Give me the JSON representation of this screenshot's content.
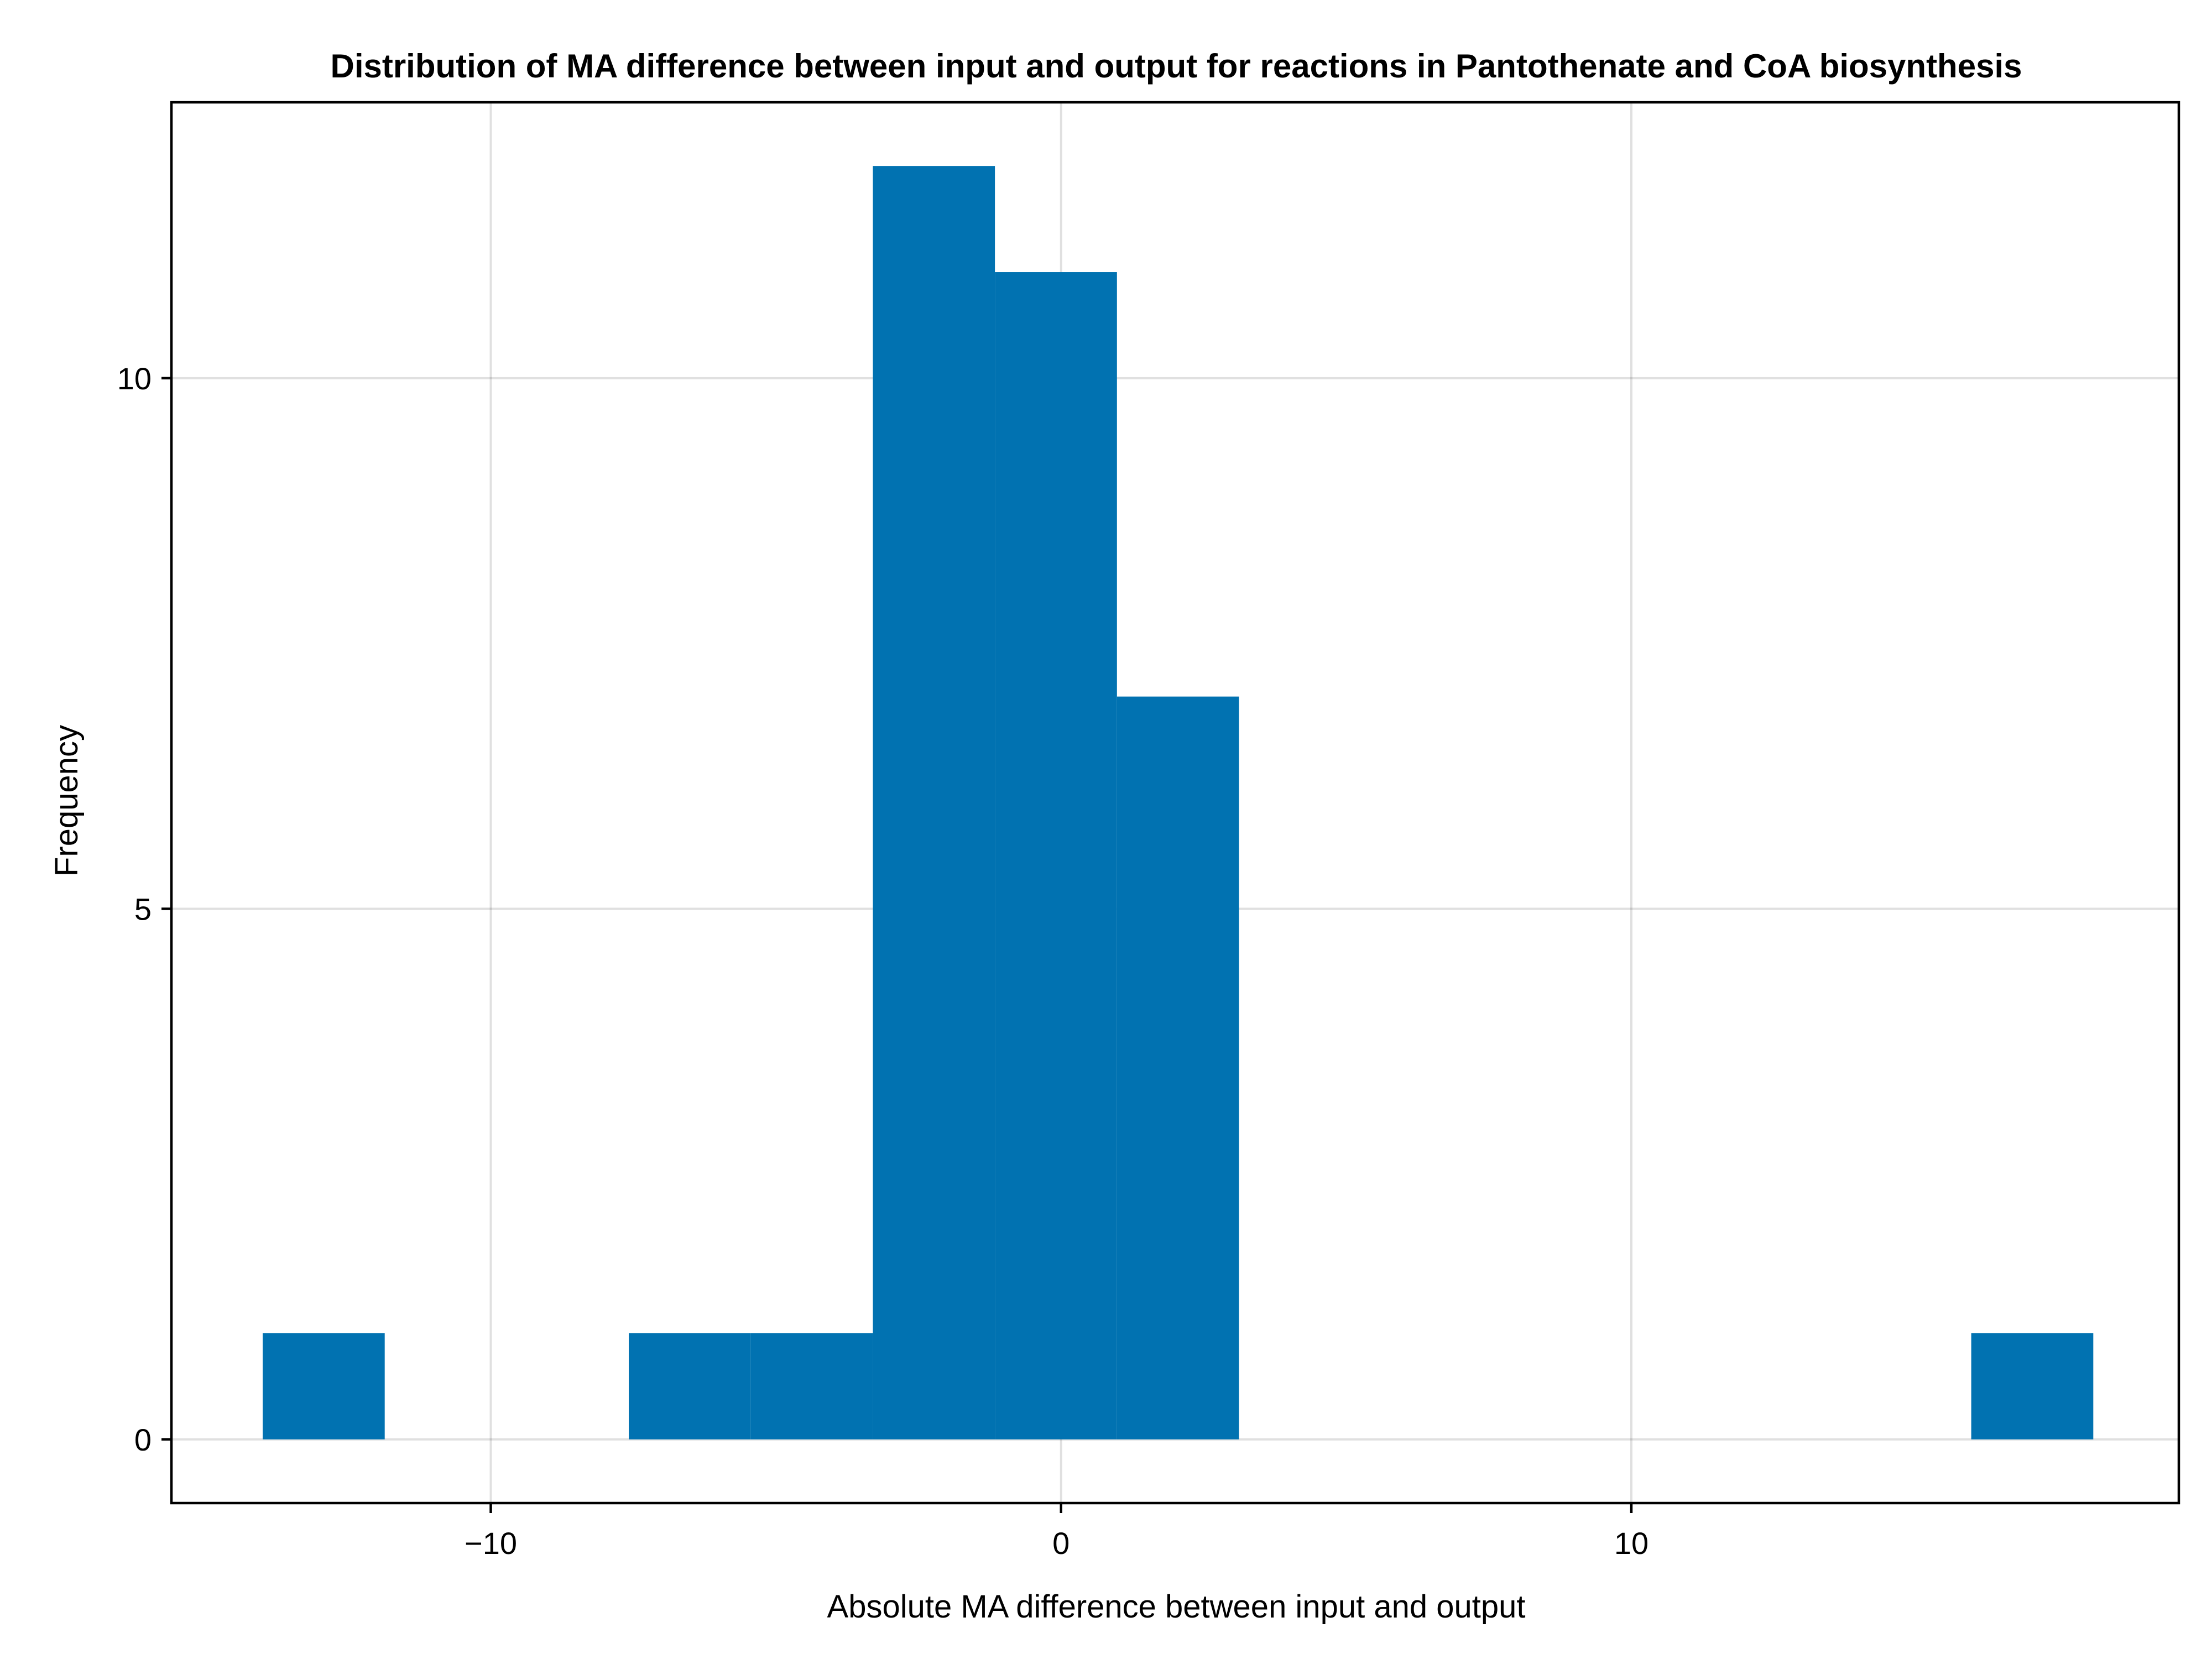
{
  "chart_data": {
    "type": "bar",
    "subtype": "histogram",
    "title": "Distribution of MA difference between input and output for reactions in Pantothenate and CoA biosynthesis",
    "xlabel": "Absolute MA difference between input and output",
    "ylabel": "Frequency",
    "bin_width": 2.14,
    "bins": [
      {
        "start": -14.0,
        "end": -11.86,
        "count": 1
      },
      {
        "start": -11.86,
        "end": -9.72,
        "count": 0
      },
      {
        "start": -9.72,
        "end": -7.58,
        "count": 0
      },
      {
        "start": -7.58,
        "end": -5.44,
        "count": 1
      },
      {
        "start": -5.44,
        "end": -3.3,
        "count": 1
      },
      {
        "start": -3.3,
        "end": -1.16,
        "count": 12
      },
      {
        "start": -1.16,
        "end": 0.98,
        "count": 11
      },
      {
        "start": 0.98,
        "end": 3.12,
        "count": 7
      },
      {
        "start": 15.96,
        "end": 18.1,
        "count": 1
      }
    ],
    "xlim": [
      -15.6,
      19.6
    ],
    "ylim": [
      -0.6,
      12.6
    ],
    "xticks": [
      -10,
      0,
      10
    ],
    "xtick_labels": [
      "−10",
      "0",
      "10"
    ],
    "yticks": [
      0,
      5,
      10
    ],
    "ytick_labels": [
      "0",
      "5",
      "10"
    ],
    "grid": true,
    "legend": false,
    "color": "#0172b1"
  }
}
